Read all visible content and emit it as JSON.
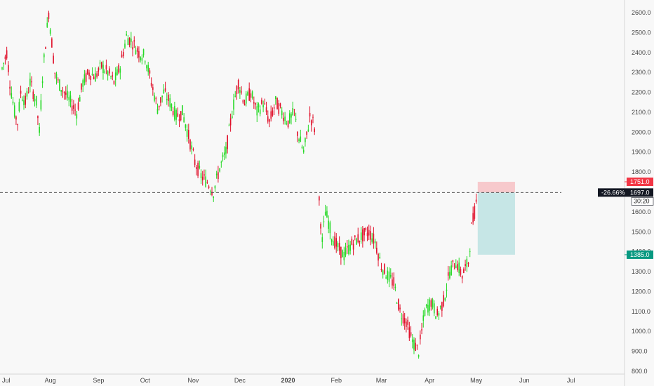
{
  "chart_data": {
    "type": "candlestick",
    "title": "",
    "y_axis": {
      "min": 800,
      "max": 2650,
      "ticks": [
        800,
        900,
        1000,
        1100,
        1200,
        1300,
        1400,
        1500,
        1600,
        1700,
        1800,
        1900,
        2000,
        2100,
        2200,
        2300,
        2400,
        2500,
        2600
      ],
      "tick_labels": [
        "800.0",
        "900.0",
        "1000.0",
        "1100.0",
        "1200.0",
        "1300.0",
        "1400.0",
        "1500.0",
        "1600.0",
        "1700.0",
        "1800.0",
        "1900.0",
        "2000.0",
        "2100.0",
        "2200.0",
        "2300.0",
        "2400.0",
        "2500.0",
        "2600.0"
      ]
    },
    "x_axis": {
      "labels": [
        {
          "text": "Jul",
          "day": 0,
          "bold": false
        },
        {
          "text": "Aug",
          "day": 31,
          "bold": false
        },
        {
          "text": "Sep",
          "day": 62,
          "bold": false
        },
        {
          "text": "Oct",
          "day": 92,
          "bold": false
        },
        {
          "text": "Nov",
          "day": 123,
          "bold": false
        },
        {
          "text": "Dec",
          "day": 153,
          "bold": false
        },
        {
          "text": "2020",
          "day": 184,
          "bold": true
        },
        {
          "text": "Feb",
          "day": 215,
          "bold": false
        },
        {
          "text": "Mar",
          "day": 244,
          "bold": false
        },
        {
          "text": "Apr",
          "day": 275,
          "bold": false
        },
        {
          "text": "May",
          "day": 305,
          "bold": false
        },
        {
          "text": "Jun",
          "day": 336,
          "bold": false
        },
        {
          "text": "Jul",
          "day": 366,
          "bold": false
        }
      ]
    },
    "series_path": [
      [
        0,
        2320
      ],
      [
        3,
        2400
      ],
      [
        5,
        2250
      ],
      [
        8,
        2100
      ],
      [
        10,
        2050
      ],
      [
        12,
        2200
      ],
      [
        15,
        2150
      ],
      [
        18,
        2250
      ],
      [
        22,
        2150
      ],
      [
        24,
        2000
      ],
      [
        26,
        2280
      ],
      [
        28,
        2450
      ],
      [
        30,
        2600
      ],
      [
        32,
        2450
      ],
      [
        34,
        2300
      ],
      [
        36,
        2250
      ],
      [
        40,
        2200
      ],
      [
        44,
        2150
      ],
      [
        48,
        2100
      ],
      [
        52,
        2250
      ],
      [
        56,
        2300
      ],
      [
        60,
        2280
      ],
      [
        64,
        2330
      ],
      [
        68,
        2300
      ],
      [
        72,
        2250
      ],
      [
        76,
        2330
      ],
      [
        80,
        2480
      ],
      [
        84,
        2450
      ],
      [
        88,
        2400
      ],
      [
        92,
        2380
      ],
      [
        96,
        2250
      ],
      [
        100,
        2120
      ],
      [
        104,
        2200
      ],
      [
        108,
        2150
      ],
      [
        112,
        2080
      ],
      [
        116,
        2100
      ],
      [
        120,
        1980
      ],
      [
        124,
        1850
      ],
      [
        128,
        1780
      ],
      [
        132,
        1750
      ],
      [
        136,
        1700
      ],
      [
        140,
        1820
      ],
      [
        144,
        1900
      ],
      [
        148,
        2100
      ],
      [
        150,
        2180
      ],
      [
        152,
        2250
      ],
      [
        156,
        2150
      ],
      [
        160,
        2200
      ],
      [
        164,
        2100
      ],
      [
        168,
        2150
      ],
      [
        172,
        2050
      ],
      [
        176,
        2150
      ],
      [
        180,
        2100
      ],
      [
        184,
        2050
      ],
      [
        188,
        2100
      ],
      [
        190,
        2000
      ],
      [
        194,
        1900
      ],
      [
        196,
        1980
      ],
      [
        198,
        2080
      ],
      [
        200,
        2050
      ],
      [
        202,
        1990
      ],
      [
        204,
        1650
      ],
      [
        206,
        1450
      ],
      [
        208,
        1600
      ],
      [
        210,
        1550
      ],
      [
        212,
        1480
      ],
      [
        216,
        1420
      ],
      [
        220,
        1380
      ],
      [
        224,
        1430
      ],
      [
        228,
        1460
      ],
      [
        232,
        1480
      ],
      [
        236,
        1500
      ],
      [
        240,
        1450
      ],
      [
        244,
        1330
      ],
      [
        248,
        1280
      ],
      [
        252,
        1240
      ],
      [
        256,
        1100
      ],
      [
        260,
        1050
      ],
      [
        264,
        950
      ],
      [
        268,
        900
      ],
      [
        272,
        1100
      ],
      [
        276,
        1150
      ],
      [
        280,
        1080
      ],
      [
        284,
        1150
      ],
      [
        288,
        1300
      ],
      [
        292,
        1350
      ],
      [
        296,
        1280
      ],
      [
        300,
        1350
      ],
      [
        302,
        1520
      ],
      [
        304,
        1600
      ],
      [
        306,
        1700
      ]
    ],
    "reference_price": {
      "value": 1697.0,
      "label": "1697.0",
      "change": "-26.66%",
      "time": "30:20"
    },
    "stop_loss": {
      "value": 1751.0,
      "label": "1751.0",
      "color": "#f23645"
    },
    "target": {
      "value": 1385.0,
      "label": "1385.0",
      "color": "#089981"
    },
    "position_box": {
      "start_day": 306,
      "end_day": 330,
      "entry": 1697,
      "stop": 1751,
      "target": 1385
    },
    "colors": {
      "up": "#26d926",
      "down": "#e0102a",
      "risk_fill": "#f7c9cc",
      "reward_fill": "#c6e6e6",
      "dash": "#555555",
      "price_tag_bg": "#131722"
    }
  }
}
